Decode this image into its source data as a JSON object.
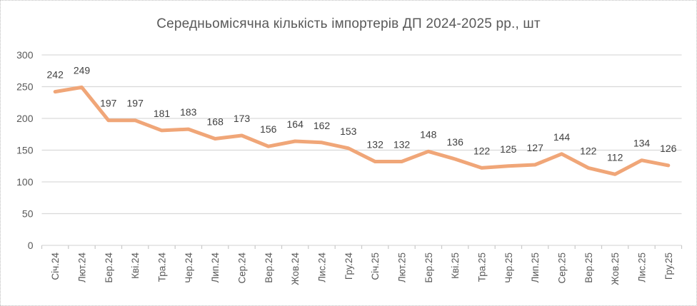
{
  "window": {
    "background_color": "#FFFFFF",
    "border_color": "#BDBDBD"
  },
  "chart_data": {
    "type": "line",
    "title": "Середньомісячна кількість імпортерів ДП 2024-2025 рр., шт",
    "categories": [
      "Січ.24",
      "Лют.24",
      "Бер.24",
      "Кві.24",
      "Тра.24",
      "Чер.24",
      "Лип.24",
      "Сер.24",
      "Вер.24",
      "Жов.24",
      "Лис.24",
      "Гру.24",
      "Січ.25",
      "Лют.25",
      "Бер.25",
      "Кві.25",
      "Тра.25",
      "Чер.25",
      "Лип.25",
      "Сер.25",
      "Вер.25",
      "Жов.25",
      "Лис.25",
      "Гру.25"
    ],
    "values": [
      242,
      249,
      197,
      197,
      181,
      183,
      168,
      173,
      156,
      164,
      162,
      153,
      132,
      132,
      148,
      136,
      122,
      125,
      127,
      144,
      122,
      112,
      134,
      126
    ],
    "series_name": "Середньомісячна кількість імпортерів ДП",
    "yticks": [
      0,
      50,
      100,
      150,
      200,
      250,
      300
    ],
    "ylim": [
      0,
      300
    ],
    "grid": true,
    "legend_position": "none",
    "data_labels_position": "above",
    "line_color": "#F0A678",
    "gridline_color": "#D9D9D9",
    "tick_color": "#C9C9C9",
    "axis_text_color": "#595959",
    "data_label_color": "#404040",
    "title_color": "#595959"
  }
}
